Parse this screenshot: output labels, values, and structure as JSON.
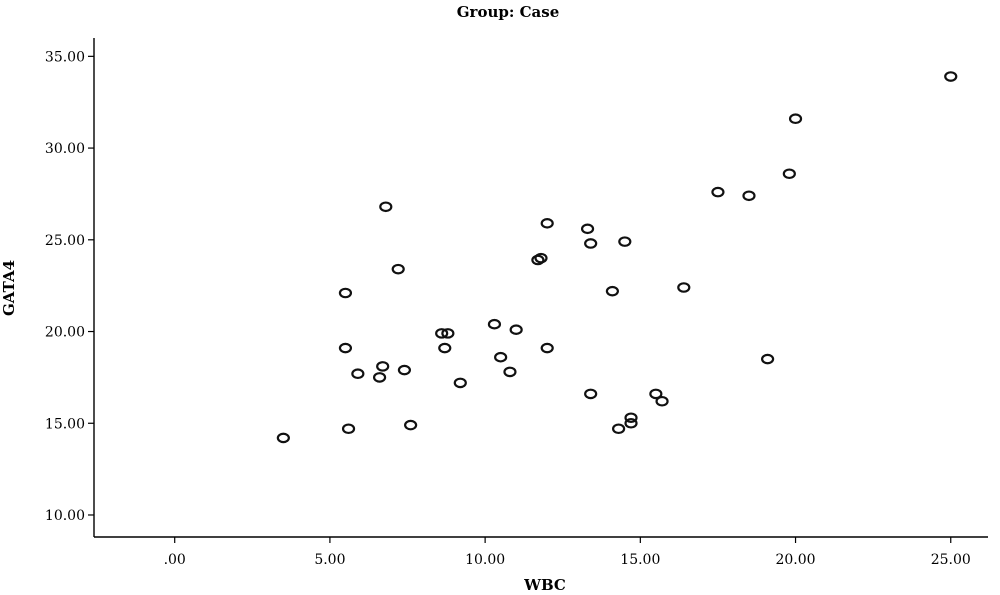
{
  "chart_data": {
    "type": "scatter",
    "title": "Group: Case",
    "xlabel": "WBC",
    "ylabel": "GATA4",
    "xlim": [
      -2.6,
      26.2
    ],
    "ylim": [
      8.8,
      36.0
    ],
    "x_ticks": [
      0,
      5,
      10,
      15,
      20,
      25
    ],
    "x_tick_labels": [
      ".00",
      "5.00",
      "10.00",
      "15.00",
      "20.00",
      "25.00"
    ],
    "y_ticks": [
      10,
      15,
      20,
      25,
      30,
      35
    ],
    "y_tick_labels": [
      "10.00",
      "15.00",
      "20.00",
      "25.00",
      "30.00",
      "35.00"
    ],
    "grid": false,
    "marker": "hollow-circle",
    "points": [
      {
        "x": 3.5,
        "y": 14.2
      },
      {
        "x": 5.5,
        "y": 22.1
      },
      {
        "x": 5.5,
        "y": 19.1
      },
      {
        "x": 5.6,
        "y": 14.7
      },
      {
        "x": 5.9,
        "y": 17.7
      },
      {
        "x": 6.6,
        "y": 17.5
      },
      {
        "x": 6.7,
        "y": 18.1
      },
      {
        "x": 6.8,
        "y": 26.8
      },
      {
        "x": 7.2,
        "y": 23.4
      },
      {
        "x": 7.4,
        "y": 17.9
      },
      {
        "x": 7.6,
        "y": 14.9
      },
      {
        "x": 8.6,
        "y": 19.9
      },
      {
        "x": 8.7,
        "y": 19.1
      },
      {
        "x": 8.8,
        "y": 19.9
      },
      {
        "x": 9.2,
        "y": 17.2
      },
      {
        "x": 10.3,
        "y": 20.4
      },
      {
        "x": 10.5,
        "y": 18.6
      },
      {
        "x": 10.8,
        "y": 17.8
      },
      {
        "x": 11.0,
        "y": 20.1
      },
      {
        "x": 11.7,
        "y": 23.9
      },
      {
        "x": 11.8,
        "y": 24.0
      },
      {
        "x": 12.0,
        "y": 19.1
      },
      {
        "x": 12.0,
        "y": 25.9
      },
      {
        "x": 13.3,
        "y": 25.6
      },
      {
        "x": 13.4,
        "y": 16.6
      },
      {
        "x": 13.4,
        "y": 24.8
      },
      {
        "x": 14.1,
        "y": 22.2
      },
      {
        "x": 14.3,
        "y": 14.7
      },
      {
        "x": 14.5,
        "y": 24.9
      },
      {
        "x": 14.7,
        "y": 15.3
      },
      {
        "x": 14.7,
        "y": 15.0
      },
      {
        "x": 15.5,
        "y": 16.6
      },
      {
        "x": 15.7,
        "y": 16.2
      },
      {
        "x": 16.4,
        "y": 22.4
      },
      {
        "x": 17.5,
        "y": 27.6
      },
      {
        "x": 18.5,
        "y": 27.4
      },
      {
        "x": 19.1,
        "y": 18.5
      },
      {
        "x": 19.8,
        "y": 28.6
      },
      {
        "x": 20.0,
        "y": 31.6
      },
      {
        "x": 25.0,
        "y": 33.9
      }
    ]
  }
}
